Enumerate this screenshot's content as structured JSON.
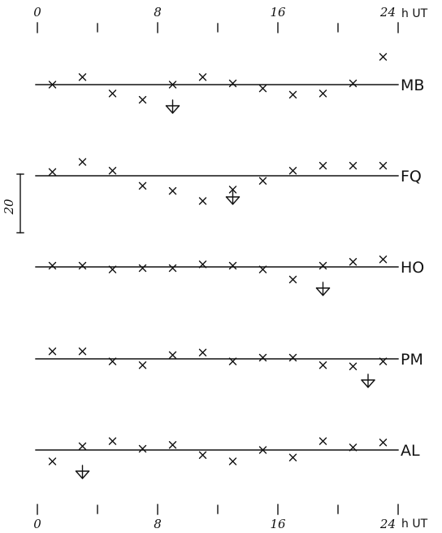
{
  "chart_data": {
    "type": "scatter",
    "xaxis": {
      "unit": "h UT",
      "range": [
        0,
        24
      ],
      "major_ticks": [
        0,
        8,
        16,
        24
      ],
      "minor_ticks": [
        4,
        12,
        20
      ],
      "tick_labels": [
        "0",
        "8",
        "16",
        "24"
      ]
    },
    "scale_bar": {
      "label": "20",
      "value": 20
    },
    "series": [
      {
        "name": "MB",
        "x": [
          1,
          3,
          5,
          7,
          9,
          11,
          13,
          15,
          17,
          19,
          21,
          23
        ],
        "y": [
          0,
          6,
          -7,
          -12,
          0,
          6,
          1,
          -3,
          -8,
          -7,
          1,
          22
        ],
        "arrow_x": 9
      },
      {
        "name": "FQ",
        "x": [
          1,
          3,
          5,
          7,
          9,
          11,
          13,
          15,
          17,
          19,
          21,
          23
        ],
        "y": [
          3,
          11,
          4,
          -8,
          -12,
          -20,
          -11,
          -4,
          4,
          8,
          8,
          8
        ],
        "arrow_x": 13
      },
      {
        "name": "HO",
        "x": [
          1,
          3,
          5,
          7,
          9,
          11,
          13,
          15,
          17,
          19,
          21,
          23
        ],
        "y": [
          1,
          1,
          -2,
          -1,
          -1,
          2,
          1,
          -2,
          -10,
          1,
          4,
          6
        ],
        "arrow_x": 19
      },
      {
        "name": "PM",
        "x": [
          1,
          3,
          5,
          7,
          9,
          11,
          13,
          15,
          17,
          19,
          21,
          23
        ],
        "y": [
          6,
          6,
          -2,
          -5,
          3,
          5,
          -2,
          1,
          1,
          -5,
          -6,
          -2
        ],
        "arrow_x": 22
      },
      {
        "name": "AL",
        "x": [
          1,
          3,
          5,
          7,
          9,
          11,
          13,
          15,
          17,
          19,
          21,
          23
        ],
        "y": [
          -9,
          3,
          7,
          1,
          4,
          -4,
          -9,
          0,
          -6,
          7,
          2,
          6
        ],
        "arrow_x": 3
      }
    ]
  }
}
